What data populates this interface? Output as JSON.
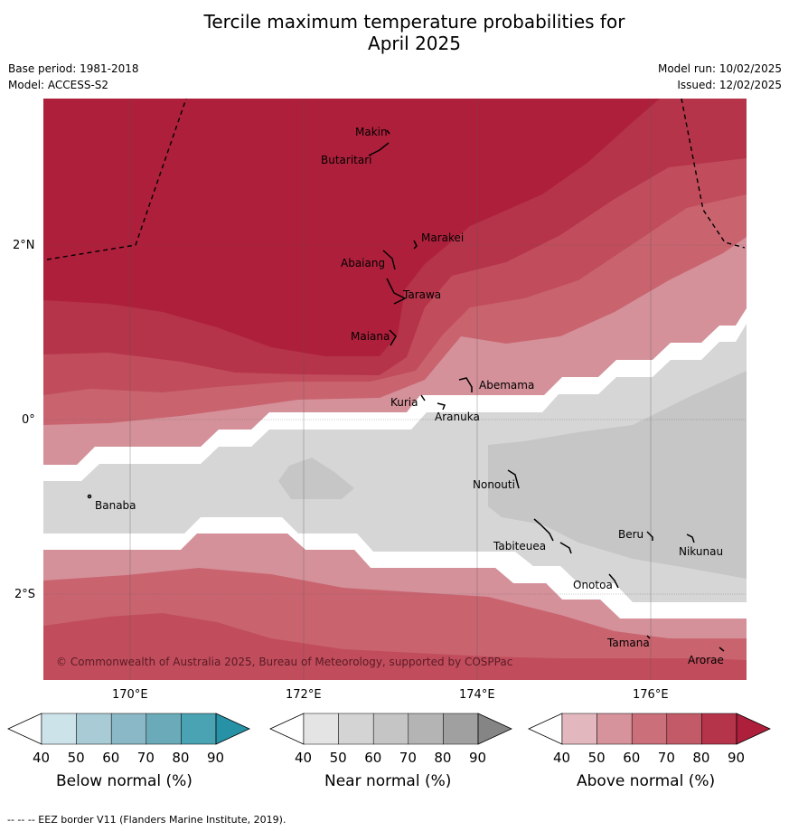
{
  "title_line1": "Tercile maximum temperature probabilities for",
  "title_line2": "April 2025",
  "base_period": "Base period: 1981-2018",
  "model": "Model: ACCESS-S2",
  "model_run": "Model run: 10/02/2025",
  "issued": "Issued: 12/02/2025",
  "lat_labels": [
    "2°N",
    "0°",
    "2°S"
  ],
  "lon_labels": [
    "170°E",
    "172°E",
    "174°E",
    "176°E"
  ],
  "islands": [
    "Makin",
    "Butaritari",
    "Marakei",
    "Abaiang",
    "Tarawa",
    "Maiana",
    "Abemama",
    "Kuria",
    "Aranuka",
    "Banaba",
    "Nonouti",
    "Beru",
    "Tabiteuea",
    "Nikunau",
    "Onotoa",
    "Tamana",
    "Arorae"
  ],
  "copyright": "© Commonwealth of Australia 2025, Bureau of Meteorology, supported by COSPPac",
  "colorbars": [
    {
      "title": "Below normal (%)",
      "ticks": [
        "40",
        "50",
        "60",
        "70",
        "80",
        "90"
      ],
      "colors": [
        "#ffffff",
        "#cde3ea",
        "#a8cbd5",
        "#8bb8c6",
        "#6aaab9",
        "#49a3b3",
        "#2791a6"
      ]
    },
    {
      "title": "Near normal (%)",
      "ticks": [
        "40",
        "50",
        "60",
        "70",
        "80",
        "90"
      ],
      "colors": [
        "#ffffff",
        "#e4e4e4",
        "#d4d4d4",
        "#c5c5c5",
        "#b4b4b4",
        "#a0a0a0",
        "#858585"
      ]
    },
    {
      "title": "Above normal (%)",
      "ticks": [
        "40",
        "50",
        "60",
        "70",
        "80",
        "90"
      ],
      "colors": [
        "#ffffff",
        "#e2b8be",
        "#d6939c",
        "#cb6f7a",
        "#c35a67",
        "#b5344a",
        "#ae1f3b"
      ]
    }
  ],
  "footer": "--  --  -- EEZ border V11 (Flanders Marine Institute, 2019).",
  "map_colors": {
    "above_90": "#ae1f3b",
    "above_80": "#b5344a",
    "above_70": "#c14d5c",
    "above_60": "#c9646f",
    "above_50": "#d4919a",
    "near_50": "#d6d6d6",
    "near_60": "#c6c6c6"
  }
}
